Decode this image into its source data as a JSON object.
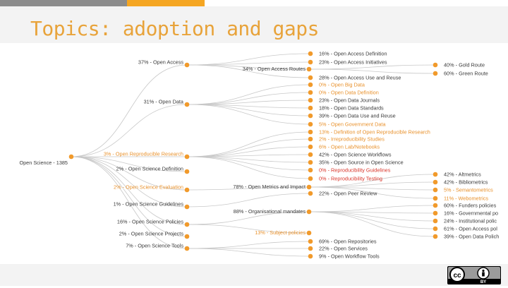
{
  "slide": {
    "title": "Topics: adoption and gaps",
    "colors": {
      "accent": "#f5a623",
      "bar_gray": "#8c8c8c",
      "dot": "#f19a2b",
      "line": "#c8c8c8",
      "red": "#d9352a"
    }
  },
  "license": {
    "by_text": "BY",
    "icons": [
      "cc-icon",
      "by-person-icon"
    ]
  },
  "tree": {
    "root": {
      "label": "Open Science - 1385"
    },
    "level1": [
      {
        "id": "oa",
        "label": "37% - Open Access"
      },
      {
        "id": "od",
        "label": "31% - Open Data"
      },
      {
        "id": "orr",
        "label": "3% - Open Reproducible Research",
        "style": "orange"
      },
      {
        "id": "osd",
        "label": "2% - Open Science Definition"
      },
      {
        "id": "ose",
        "label": "2% - Open Science Evaluation",
        "style": "orange"
      },
      {
        "id": "osg",
        "label": "1% - Open Science Guidelines"
      },
      {
        "id": "osp",
        "label": "16% - Open Science Policies"
      },
      {
        "id": "ospr",
        "label": "2% - Open Science Projects"
      },
      {
        "id": "ost",
        "label": "7% - Open Science Tools"
      }
    ],
    "level2": [
      {
        "id": "oar",
        "label": "34% - Open Access Routes"
      },
      {
        "id": "omi",
        "label": "78% - Open Metrics and Impact"
      },
      {
        "id": "oom",
        "label": "88% - Organisational mandates"
      },
      {
        "id": "osup",
        "label": "13% - Subject policies",
        "style": "orange"
      }
    ],
    "level3": [
      {
        "label": "16% - Open Access Definition"
      },
      {
        "label": "23% - Open Access Initiatives"
      },
      {
        "label": "28% - Open Access Use and Reuse"
      },
      {
        "label": "0% - Open Big Data",
        "style": "orange"
      },
      {
        "label": "0% - Open Data Definition",
        "style": "orange"
      },
      {
        "label": "23% - Open Data Journals"
      },
      {
        "label": "18% - Open Data Standards"
      },
      {
        "label": "39% - Open Data Use and Reuse"
      },
      {
        "label": "5% - Open Government Data",
        "style": "orange"
      },
      {
        "label": "13% - Definition of Open Reproducible Research",
        "style": "orange"
      },
      {
        "label": "2% - Irreproducibility Studies",
        "style": "orange"
      },
      {
        "label": "6% - Open Lab/Notebooks",
        "style": "orange"
      },
      {
        "label": "42% - Open Science Workflows"
      },
      {
        "label": "35% - Open Source in Open Science"
      },
      {
        "label": "0% - Reproducibility Guidelines",
        "style": "red"
      },
      {
        "label": "0% - Reproducibility Testing",
        "style": "red"
      },
      {
        "label": "22% - Open Peer Review"
      },
      {
        "label": "69% - Open Repositories"
      },
      {
        "label": "22% - Open Services"
      },
      {
        "label": "9% - Open Workflow Tools"
      }
    ],
    "level4": [
      {
        "label": "40% - Gold Route"
      },
      {
        "label": "60% - Green Route"
      },
      {
        "label": "42% - Altmetrics"
      },
      {
        "label": "42% - Bibliometrics"
      },
      {
        "label": "5% - Semantometrics",
        "style": "orange"
      },
      {
        "label": "11% - Webometrics",
        "style": "orange"
      },
      {
        "label": "60% - Funders policies"
      },
      {
        "label": "16% - Governmental po"
      },
      {
        "label": "24% - Institutional polic"
      },
      {
        "label": "61% - Open Access pol"
      },
      {
        "label": "39% - Open Data Polich"
      }
    ]
  }
}
